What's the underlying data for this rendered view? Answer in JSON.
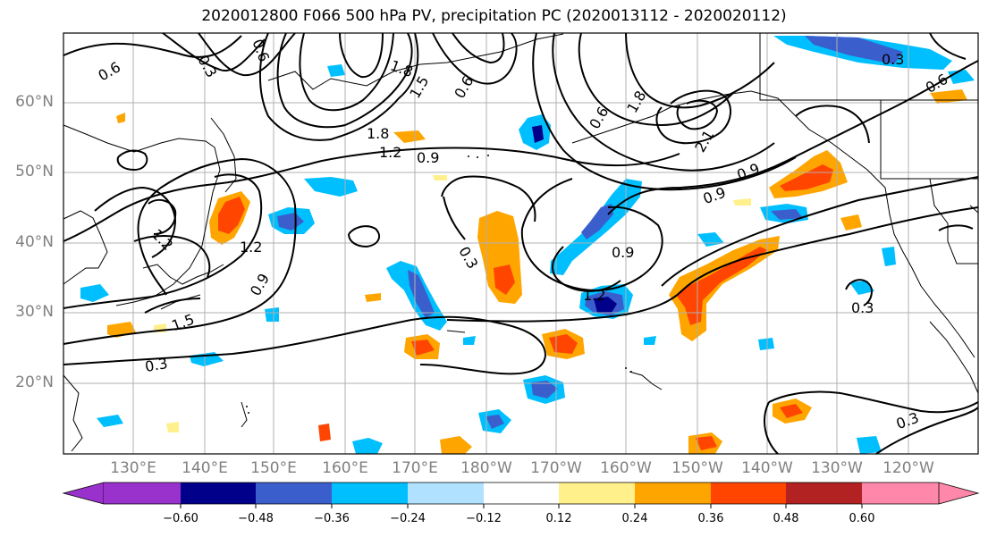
{
  "title": "2020012800 F066 500 hPa PV, precipitation PC (2020013112 - 2020020112)",
  "lat_labels": [
    "60°N",
    "50°N",
    "40°N",
    "30°N",
    "20°N"
  ],
  "lon_labels": [
    "130°E",
    "140°E",
    "150°E",
    "160°E",
    "170°E",
    "180°W",
    "170°W",
    "160°W",
    "150°W",
    "140°W",
    "130°W",
    "120°W"
  ],
  "colorbar": {
    "ticks": [
      "−0.60",
      "−0.48",
      "−0.36",
      "−0.24",
      "−0.12",
      "0.12",
      "0.24",
      "0.36",
      "0.48",
      "0.60"
    ],
    "colors": [
      "#9932cc",
      "#00008b",
      "#3a5fcd",
      "#00bfff",
      "#b0e2ff",
      "#ffffff",
      "#fff08c",
      "#ffa500",
      "#ff4500",
      "#b22222",
      "#ff88aa"
    ]
  },
  "contour_labels": [
    "0.6",
    "0.3",
    "0.6",
    "1.8",
    "1.5",
    "0.6",
    "1.8",
    "1.2",
    "0.9",
    "1.2",
    "0.9",
    "1.2",
    "0.9",
    "1.5",
    "0.3",
    "0.3",
    "0.9",
    "1.2",
    "0.9",
    "0.6",
    "2.1",
    "1.8",
    "0.3",
    "0.3",
    "0.3",
    "0.6"
  ]
}
